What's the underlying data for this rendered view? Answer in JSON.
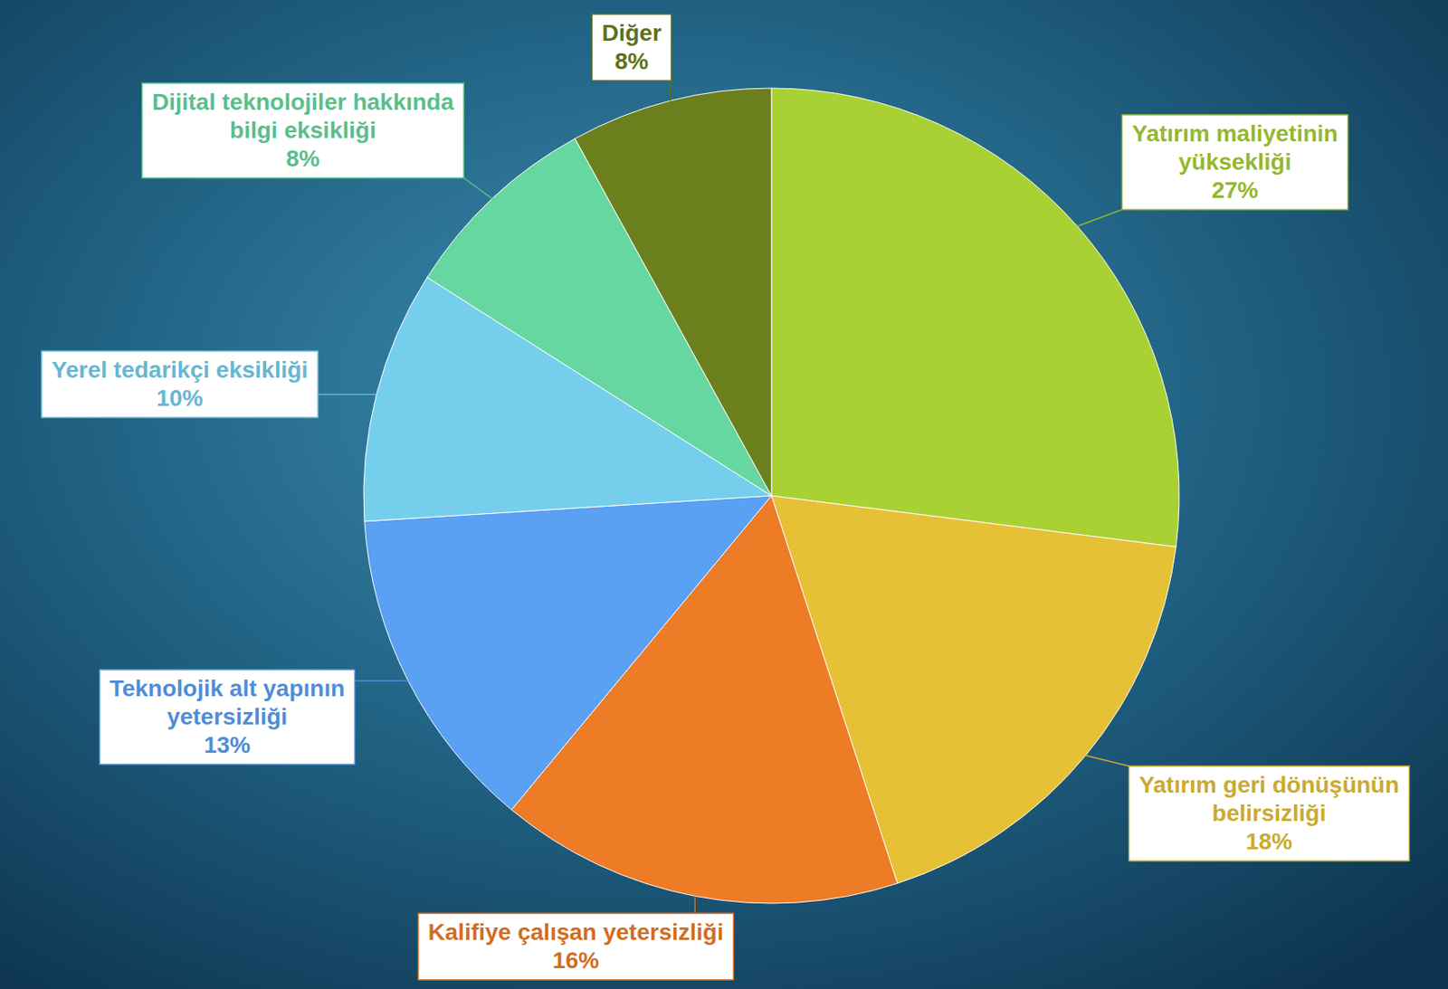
{
  "chart_data": {
    "type": "pie",
    "categories": [
      "Yatırım maliyetinin yüksekliği",
      "Yatırım geri dönüşünün belirsizliği",
      "Kalifiye çalışan yetersizliği",
      "Teknolojik alt yapının yetersizliği",
      "Yerel tedarikçi eksikliği",
      "Dijital teknolojiler hakkında bilgi eksikliği",
      "Diğer"
    ],
    "values": [
      27,
      18,
      16,
      13,
      10,
      8,
      8
    ],
    "value_labels": [
      "27%",
      "18%",
      "16%",
      "13%",
      "10%",
      "8%",
      "8%"
    ],
    "colors": [
      "#a9d134",
      "#e6c136",
      "#ee7b25",
      "#5aa0f3",
      "#75cfec",
      "#66d7a0",
      "#6b801c"
    ],
    "data_labels": true
  }
}
